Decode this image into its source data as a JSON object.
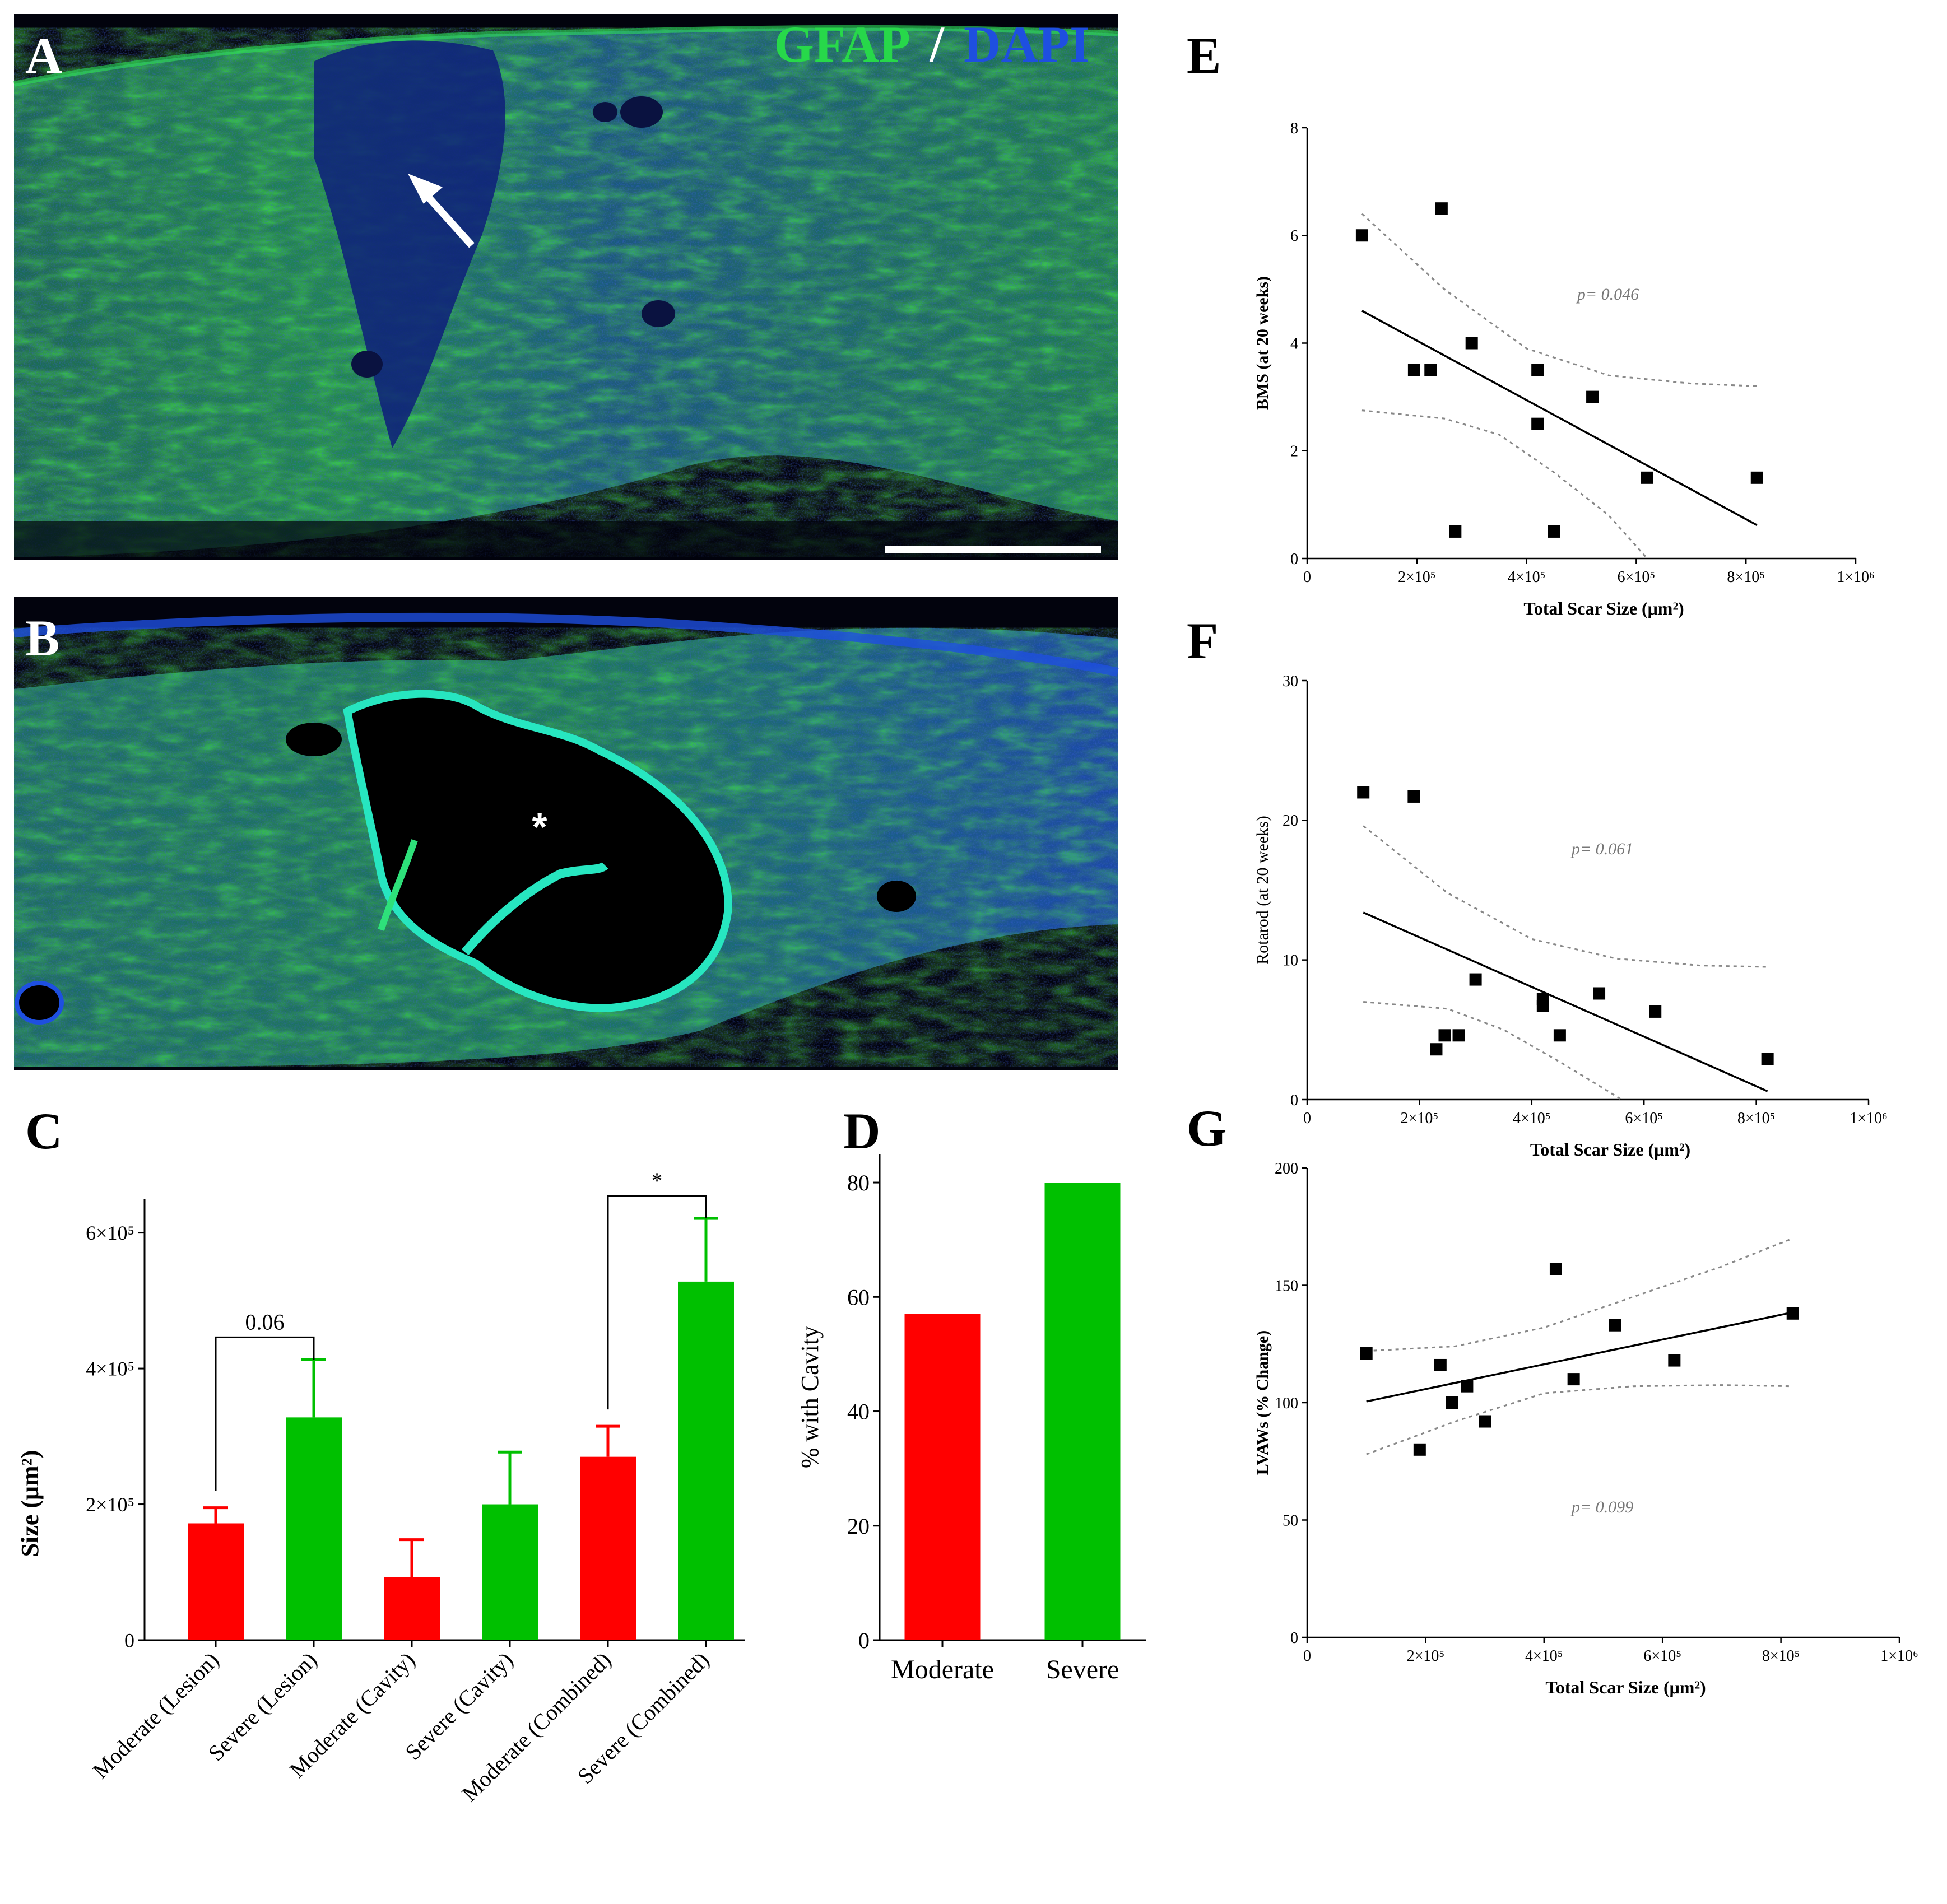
{
  "figure": {
    "panel_letters": {
      "a": "A",
      "b": "B",
      "c": "C",
      "d": "D",
      "e": "E",
      "f": "F",
      "g": "G"
    },
    "stain_label_1": "GFAP",
    "stain_separator": "/",
    "stain_label_2": "DAPI",
    "panel_b_marker": "*",
    "colors": {
      "moderate": "#ff0000",
      "severe": "#00c000",
      "gfap": "#27d84a",
      "dapi": "#1e4fe0",
      "image_bg": "#02030d"
    }
  },
  "chart_data": [
    {
      "panel": "C",
      "type": "bar",
      "ylabel": "Size (μm²)",
      "ylim": [
        0,
        650000
      ],
      "yticks": [
        {
          "value": 0,
          "label": "0"
        },
        {
          "value": 200000,
          "label": "2×10⁵"
        },
        {
          "value": 400000,
          "label": "4×10⁵"
        },
        {
          "value": 600000,
          "label": "6×10⁵"
        }
      ],
      "categories": [
        "Moderate (Lesion)",
        "Severe (Lesion)",
        "Moderate (Cavity)",
        "Severe (Cavity)",
        "Moderate (Combined)",
        "Severe (Combined)"
      ],
      "values": [
        172000,
        328000,
        93000,
        200000,
        270000,
        528000
      ],
      "errors": [
        23000,
        85000,
        55000,
        77000,
        45000,
        93000
      ],
      "colors": [
        "#ff0000",
        "#00c000",
        "#ff0000",
        "#00c000",
        "#ff0000",
        "#00c000"
      ],
      "comparisons": [
        {
          "from": 0,
          "to": 1,
          "label": "0.06"
        },
        {
          "from": 4,
          "to": 5,
          "label": "*"
        }
      ]
    },
    {
      "panel": "D",
      "type": "bar",
      "ylabel": "% with Cavity",
      "ylim": [
        0,
        85
      ],
      "yticks": [
        {
          "value": 0,
          "label": "0"
        },
        {
          "value": 20,
          "label": "20"
        },
        {
          "value": 40,
          "label": "40"
        },
        {
          "value": 60,
          "label": "60"
        },
        {
          "value": 80,
          "label": "80"
        }
      ],
      "categories": [
        "Moderate",
        "Severe"
      ],
      "values": [
        57,
        80
      ],
      "colors": [
        "#ff0000",
        "#00c000"
      ]
    },
    {
      "panel": "E",
      "type": "scatter",
      "xlabel": "Total Scar Size (μm²)",
      "ylabel": "BMS (at 20 weeks)",
      "xlim": [
        0,
        1000000
      ],
      "ylim": [
        0,
        8
      ],
      "xticks": [
        {
          "value": 0,
          "label": "0"
        },
        {
          "value": 200000,
          "label": "2×10⁵"
        },
        {
          "value": 400000,
          "label": "4×10⁵"
        },
        {
          "value": 600000,
          "label": "6×10⁵"
        },
        {
          "value": 800000,
          "label": "8×10⁵"
        },
        {
          "value": 1000000,
          "label": "1×10⁶"
        }
      ],
      "yticks": [
        {
          "value": 0,
          "label": "0"
        },
        {
          "value": 2,
          "label": "2"
        },
        {
          "value": 4,
          "label": "4"
        },
        {
          "value": 6,
          "label": "6"
        },
        {
          "value": 8,
          "label": "8"
        }
      ],
      "points": [
        [
          100000,
          6
        ],
        [
          195000,
          3.5
        ],
        [
          225000,
          3.5
        ],
        [
          245000,
          6.5
        ],
        [
          270000,
          0.5
        ],
        [
          300000,
          4
        ],
        [
          420000,
          3.5
        ],
        [
          420000,
          2.5
        ],
        [
          450000,
          0.5
        ],
        [
          520000,
          3
        ],
        [
          620000,
          1.5
        ],
        [
          820000,
          1.5
        ]
      ],
      "fit": {
        "x": [
          100000,
          820000
        ],
        "y": [
          4.6,
          0.62
        ]
      },
      "ci_upper": [
        [
          100000,
          6.4
        ],
        [
          250000,
          5.0
        ],
        [
          400000,
          3.9
        ],
        [
          550000,
          3.4
        ],
        [
          700000,
          3.25
        ],
        [
          820000,
          3.2
        ]
      ],
      "ci_lower": [
        [
          100000,
          2.75
        ],
        [
          250000,
          2.6
        ],
        [
          350000,
          2.3
        ],
        [
          450000,
          1.6
        ],
        [
          550000,
          0.8
        ],
        [
          620000,
          0
        ]
      ],
      "annotation": "p= 0.046"
    },
    {
      "panel": "F",
      "type": "scatter",
      "xlabel": "Total Scar Size (μm²)",
      "ylabel": "Rotarod (at 20 weeks)",
      "xlim": [
        0,
        1000000
      ],
      "ylim": [
        0,
        30
      ],
      "xticks": [
        {
          "value": 0,
          "label": "0"
        },
        {
          "value": 200000,
          "label": "2×10⁵"
        },
        {
          "value": 400000,
          "label": "4×10⁵"
        },
        {
          "value": 600000,
          "label": "6×10⁵"
        },
        {
          "value": 800000,
          "label": "8×10⁵"
        },
        {
          "value": 1000000,
          "label": "1×10⁶"
        }
      ],
      "yticks": [
        {
          "value": 0,
          "label": "0"
        },
        {
          "value": 10,
          "label": "10"
        },
        {
          "value": 20,
          "label": "20"
        },
        {
          "value": 30,
          "label": "30"
        }
      ],
      "points": [
        [
          100000,
          22
        ],
        [
          190000,
          21.7
        ],
        [
          230000,
          3.6
        ],
        [
          245000,
          4.6
        ],
        [
          270000,
          4.6
        ],
        [
          300000,
          8.6
        ],
        [
          420000,
          7.2
        ],
        [
          420000,
          6.7
        ],
        [
          450000,
          4.6
        ],
        [
          520000,
          7.6
        ],
        [
          620000,
          6.3
        ],
        [
          820000,
          2.9
        ]
      ],
      "fit": {
        "x": [
          100000,
          820000
        ],
        "y": [
          13.4,
          0.6
        ]
      },
      "ci_upper": [
        [
          100000,
          19.6
        ],
        [
          250000,
          14.8
        ],
        [
          400000,
          11.5
        ],
        [
          550000,
          10.1
        ],
        [
          700000,
          9.6
        ],
        [
          820000,
          9.5
        ]
      ],
      "ci_lower": [
        [
          100000,
          7.0
        ],
        [
          250000,
          6.5
        ],
        [
          350000,
          5.0
        ],
        [
          450000,
          2.7
        ],
        [
          520000,
          1.0
        ],
        [
          560000,
          0
        ]
      ],
      "annotation": "p= 0.061"
    },
    {
      "panel": "G",
      "type": "scatter",
      "xlabel": "Total Scar Size (μm²)",
      "ylabel": "LVAWs (% Change)",
      "xlim": [
        0,
        1000000
      ],
      "ylim": [
        0,
        200
      ],
      "xticks": [
        {
          "value": 0,
          "label": "0"
        },
        {
          "value": 200000,
          "label": "2×10⁵"
        },
        {
          "value": 400000,
          "label": "4×10⁵"
        },
        {
          "value": 600000,
          "label": "6×10⁵"
        },
        {
          "value": 800000,
          "label": "8×10⁵"
        },
        {
          "value": 1000000,
          "label": "1×10⁶"
        }
      ],
      "yticks": [
        {
          "value": 0,
          "label": "0"
        },
        {
          "value": 50,
          "label": "50"
        },
        {
          "value": 100,
          "label": "100"
        },
        {
          "value": 150,
          "label": "150"
        },
        {
          "value": 200,
          "label": "200"
        }
      ],
      "points": [
        [
          100000,
          121
        ],
        [
          190000,
          80
        ],
        [
          225000,
          116
        ],
        [
          245000,
          100
        ],
        [
          270000,
          107
        ],
        [
          300000,
          92
        ],
        [
          420000,
          157
        ],
        [
          450000,
          110
        ],
        [
          520000,
          133
        ],
        [
          620000,
          118
        ],
        [
          820000,
          138
        ]
      ],
      "fit": {
        "x": [
          100000,
          820000
        ],
        "y": [
          100.5,
          138.5
        ]
      },
      "ci_upper": [
        [
          100000,
          122
        ],
        [
          250000,
          124
        ],
        [
          400000,
          132
        ],
        [
          550000,
          145
        ],
        [
          700000,
          158
        ],
        [
          820000,
          170
        ]
      ],
      "ci_lower": [
        [
          100000,
          78
        ],
        [
          250000,
          92
        ],
        [
          400000,
          104
        ],
        [
          550000,
          107
        ],
        [
          700000,
          107.5
        ],
        [
          820000,
          107
        ]
      ],
      "annotation": "p= 0.099"
    }
  ]
}
